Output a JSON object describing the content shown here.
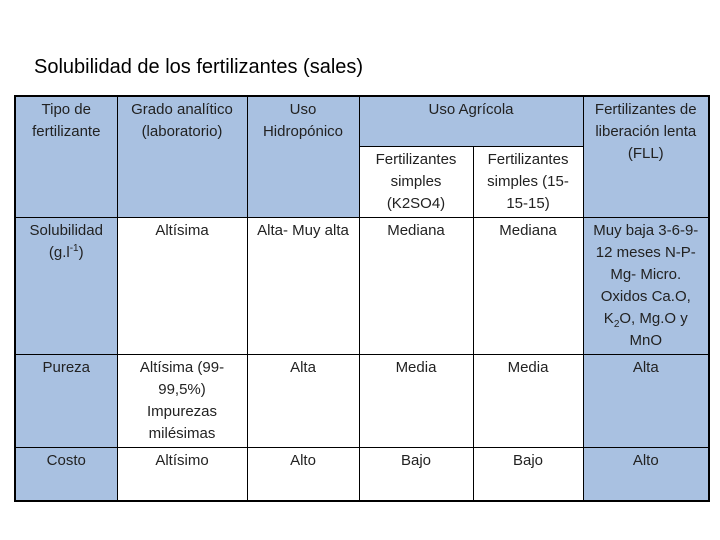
{
  "title": "Solubilidad de los fertilizantes (sales)",
  "table": {
    "header": [
      "Tipo de fertilizante",
      "Grado analítico (laboratorio)",
      "Uso Hidropónico",
      "Uso Agrícola",
      "Fertilizantes de liberación lenta (FLL)"
    ],
    "subheader": [
      "Fertilizantes simples (K2SO4)",
      "Fertilizantes simples (15-15-15)"
    ],
    "rows": [
      [
        [
          "Solubilidad (g.l",
          "-1",
          ")"
        ],
        "Altísima",
        "Alta- Muy alta",
        "Mediana",
        "Mediana",
        [
          "Muy baja 3-6-9-12 meses N-P-Mg- Micro. Oxidos Ca.O, K",
          "2",
          "O, Mg.O y MnO"
        ]
      ],
      [
        "Pureza",
        "Altísima (99-99,5%) Impurezas milésimas",
        "Alta",
        "Media",
        "Media",
        "Alta"
      ],
      [
        "Costo",
        "Altísimo",
        "Alto",
        "Bajo",
        "Bajo",
        "Alto"
      ]
    ]
  }
}
